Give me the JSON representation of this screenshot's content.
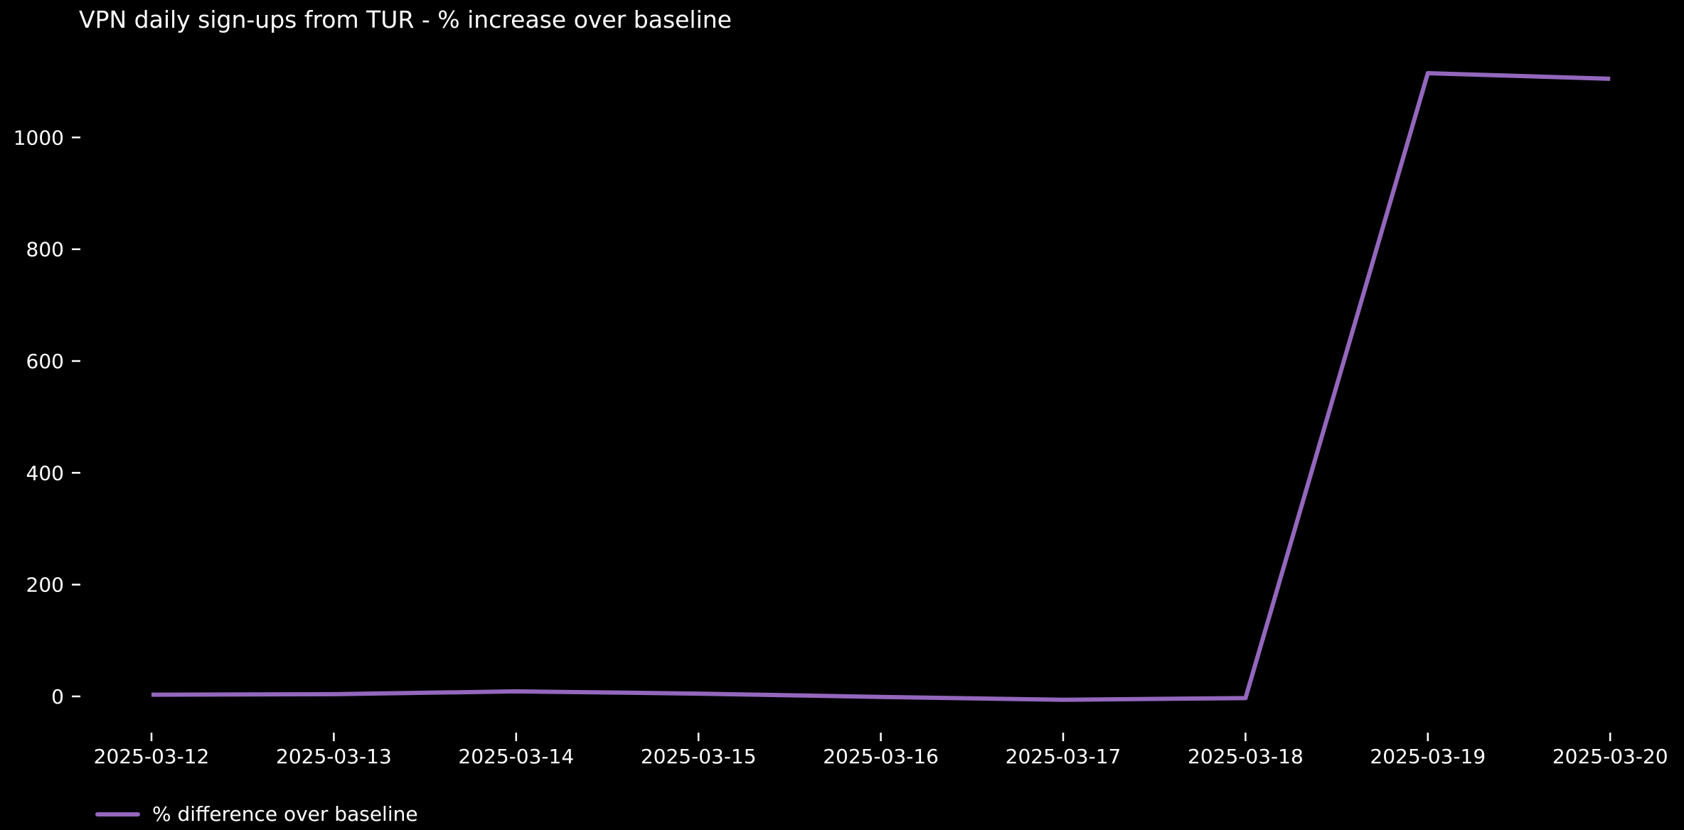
{
  "figure": {
    "background": "#000000",
    "text_color": "#ffffff"
  },
  "chart_data": {
    "type": "line",
    "title": "VPN daily sign-ups from TUR - % increase over baseline",
    "xlabel": "",
    "ylabel": "",
    "x": [
      "2025-03-12",
      "2025-03-13",
      "2025-03-14",
      "2025-03-15",
      "2025-03-16",
      "2025-03-17",
      "2025-03-18",
      "2025-03-19",
      "2025-03-20"
    ],
    "series": [
      {
        "name": "% difference over baseline",
        "color": "#9467bd",
        "values": [
          3,
          4,
          9,
          5,
          -1,
          -6,
          -3,
          1115,
          1105
        ]
      }
    ],
    "yticks": [
      0,
      200,
      400,
      600,
      800,
      1000
    ],
    "ylim": [
      -62,
      1171
    ],
    "grid": false,
    "legend_position": "bottom-left",
    "plot_background": "#000000",
    "tick_color": "#ffffff"
  }
}
